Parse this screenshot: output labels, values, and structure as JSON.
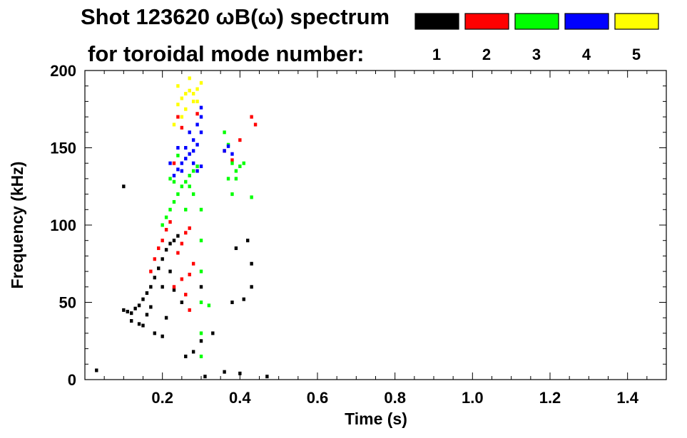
{
  "chart_data": {
    "type": "scatter",
    "title": "Shot 123620 ωB(ω) spectrum",
    "legend_title": "for toroidal mode number:",
    "xlabel": "Time (s)",
    "ylabel": "Frequency (kHz)",
    "xlim": [
      0.0,
      1.5
    ],
    "ylim": [
      0,
      200
    ],
    "x_ticks": [
      0.2,
      0.4,
      0.6,
      0.8,
      1.0,
      1.2,
      1.4
    ],
    "x_tick_labels": [
      "0.2",
      "0.4",
      "0.6",
      "0.8",
      "1.0",
      "1.2",
      "1.4"
    ],
    "y_ticks": [
      0,
      50,
      100,
      150,
      200
    ],
    "y_tick_labels": [
      "0",
      "50",
      "100",
      "150",
      "200"
    ],
    "grid": false,
    "legend_position": "top-right",
    "series": [
      {
        "name": "1",
        "color": "#000000",
        "points": [
          [
            0.1,
            45
          ],
          [
            0.11,
            44
          ],
          [
            0.12,
            43
          ],
          [
            0.13,
            46
          ],
          [
            0.14,
            48
          ],
          [
            0.15,
            52
          ],
          [
            0.16,
            56
          ],
          [
            0.17,
            60
          ],
          [
            0.18,
            66
          ],
          [
            0.19,
            72
          ],
          [
            0.2,
            78
          ],
          [
            0.21,
            84
          ],
          [
            0.22,
            88
          ],
          [
            0.23,
            90
          ],
          [
            0.24,
            93
          ],
          [
            0.12,
            38
          ],
          [
            0.15,
            35
          ],
          [
            0.18,
            30
          ],
          [
            0.2,
            28
          ],
          [
            0.21,
            40
          ],
          [
            0.16,
            42
          ],
          [
            0.14,
            36
          ],
          [
            0.23,
            58
          ],
          [
            0.25,
            50
          ],
          [
            0.03,
            6
          ],
          [
            0.2,
            60
          ],
          [
            0.17,
            47
          ],
          [
            0.22,
            70
          ],
          [
            0.31,
            2
          ],
          [
            0.36,
            5
          ],
          [
            0.4,
            4
          ],
          [
            0.47,
            2
          ],
          [
            0.41,
            52
          ],
          [
            0.42,
            90
          ],
          [
            0.43,
            75
          ],
          [
            0.38,
            50
          ],
          [
            0.3,
            60
          ],
          [
            0.3,
            25
          ],
          [
            0.26,
            15
          ],
          [
            0.28,
            18
          ],
          [
            0.39,
            85
          ],
          [
            0.1,
            125
          ],
          [
            0.43,
            60
          ],
          [
            0.33,
            30
          ]
        ]
      },
      {
        "name": "2",
        "color": "#ff0000",
        "points": [
          [
            0.17,
            70
          ],
          [
            0.18,
            78
          ],
          [
            0.19,
            85
          ],
          [
            0.2,
            90
          ],
          [
            0.21,
            97
          ],
          [
            0.22,
            102
          ],
          [
            0.25,
            88
          ],
          [
            0.26,
            95
          ],
          [
            0.27,
            98
          ],
          [
            0.24,
            82
          ],
          [
            0.28,
            75
          ],
          [
            0.25,
            65
          ],
          [
            0.26,
            55
          ],
          [
            0.27,
            45
          ],
          [
            0.23,
            60
          ],
          [
            0.24,
            170
          ],
          [
            0.25,
            163
          ],
          [
            0.23,
            140
          ],
          [
            0.36,
            148
          ],
          [
            0.4,
            155
          ],
          [
            0.44,
            165
          ],
          [
            0.43,
            170
          ],
          [
            0.38,
            142
          ],
          [
            0.29,
            172
          ],
          [
            0.27,
            68
          ]
        ]
      },
      {
        "name": "3",
        "color": "#00ff00",
        "points": [
          [
            0.2,
            100
          ],
          [
            0.21,
            105
          ],
          [
            0.22,
            110
          ],
          [
            0.23,
            115
          ],
          [
            0.24,
            120
          ],
          [
            0.25,
            125
          ],
          [
            0.26,
            128
          ],
          [
            0.27,
            132
          ],
          [
            0.28,
            135
          ],
          [
            0.29,
            138
          ],
          [
            0.3,
            110
          ],
          [
            0.3,
            90
          ],
          [
            0.3,
            70
          ],
          [
            0.3,
            50
          ],
          [
            0.3,
            30
          ],
          [
            0.3,
            15
          ],
          [
            0.26,
            110
          ],
          [
            0.28,
            120
          ],
          [
            0.27,
            125
          ],
          [
            0.36,
            160
          ],
          [
            0.37,
            152
          ],
          [
            0.38,
            140
          ],
          [
            0.39,
            135
          ],
          [
            0.4,
            138
          ],
          [
            0.37,
            130
          ],
          [
            0.38,
            120
          ],
          [
            0.39,
            130
          ],
          [
            0.41,
            140
          ],
          [
            0.32,
            48
          ],
          [
            0.22,
            130
          ],
          [
            0.24,
            145
          ],
          [
            0.23,
            128
          ],
          [
            0.43,
            118
          ]
        ]
      },
      {
        "name": "4",
        "color": "#0000ff",
        "points": [
          [
            0.23,
            132
          ],
          [
            0.24,
            136
          ],
          [
            0.25,
            140
          ],
          [
            0.26,
            143
          ],
          [
            0.27,
            146
          ],
          [
            0.28,
            148
          ],
          [
            0.29,
            152
          ],
          [
            0.3,
            160
          ],
          [
            0.3,
            170
          ],
          [
            0.3,
            176
          ],
          [
            0.26,
            150
          ],
          [
            0.28,
            155
          ],
          [
            0.27,
            160
          ],
          [
            0.29,
            165
          ],
          [
            0.22,
            140
          ],
          [
            0.25,
            135
          ],
          [
            0.24,
            150
          ],
          [
            0.3,
            138
          ],
          [
            0.36,
            148
          ],
          [
            0.37,
            151
          ],
          [
            0.38,
            146
          ],
          [
            0.29,
            135
          ],
          [
            0.28,
            140
          ]
        ]
      },
      {
        "name": "5",
        "color": "#ffff00",
        "points": [
          [
            0.24,
            178
          ],
          [
            0.25,
            182
          ],
          [
            0.26,
            185
          ],
          [
            0.27,
            187
          ],
          [
            0.28,
            185
          ],
          [
            0.29,
            188
          ],
          [
            0.3,
            192
          ],
          [
            0.25,
            170
          ],
          [
            0.26,
            175
          ],
          [
            0.28,
            180
          ],
          [
            0.24,
            190
          ],
          [
            0.27,
            195
          ],
          [
            0.29,
            180
          ],
          [
            0.23,
            165
          ]
        ]
      }
    ]
  }
}
